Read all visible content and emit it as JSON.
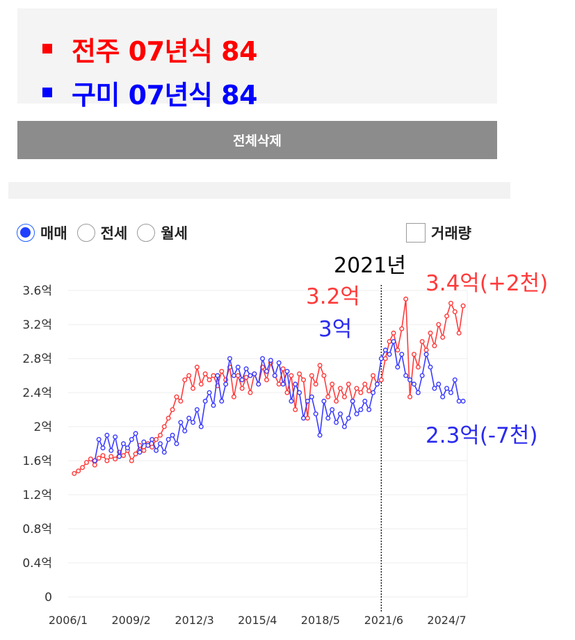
{
  "legend": {
    "items": [
      {
        "label": "전주 07년식 84",
        "color": "#ff0000"
      },
      {
        "label": "구미 07년식 84",
        "color": "#0000ff"
      }
    ]
  },
  "delete_button": {
    "label": "전체삭제"
  },
  "chart_type_options": [
    {
      "label": "매매",
      "selected": true
    },
    {
      "label": "전세",
      "selected": false
    },
    {
      "label": "월세",
      "selected": false
    }
  ],
  "volume_checkbox": {
    "label": "거래량",
    "checked": false
  },
  "chart_data": {
    "type": "line",
    "xlabel": "",
    "ylabel": "",
    "xlim": [
      2006.0,
      2025.5
    ],
    "ylim": [
      0,
      3.6
    ],
    "x_ticks": [
      {
        "value": 2006.0,
        "label": "2006/1"
      },
      {
        "value": 2009.08,
        "label": "2009/2"
      },
      {
        "value": 2012.17,
        "label": "2012/3"
      },
      {
        "value": 2015.25,
        "label": "2015/4"
      },
      {
        "value": 2018.33,
        "label": "2018/5"
      },
      {
        "value": 2021.42,
        "label": "2021/6"
      },
      {
        "value": 2024.5,
        "label": "2024/7"
      }
    ],
    "y_ticks": [
      {
        "value": 0,
        "label": "0"
      },
      {
        "value": 0.4,
        "label": "0.4억"
      },
      {
        "value": 0.8,
        "label": "0.8억"
      },
      {
        "value": 1.2,
        "label": "1.2억"
      },
      {
        "value": 1.6,
        "label": "1.6억"
      },
      {
        "value": 2.0,
        "label": "2억"
      },
      {
        "value": 2.4,
        "label": "2.4억"
      },
      {
        "value": 2.8,
        "label": "2.8억"
      },
      {
        "value": 3.2,
        "label": "3.2억"
      },
      {
        "value": 3.6,
        "label": "3.6억"
      }
    ],
    "grid": "horizontal",
    "reference_line": {
      "x": 2021.3,
      "label": "2021년"
    },
    "series": [
      {
        "name": "전주 07년식 84",
        "color": "#ff3a3a",
        "points": [
          [
            2006.3,
            1.45
          ],
          [
            2006.5,
            1.48
          ],
          [
            2006.7,
            1.52
          ],
          [
            2006.9,
            1.58
          ],
          [
            2007.1,
            1.62
          ],
          [
            2007.3,
            1.55
          ],
          [
            2007.5,
            1.63
          ],
          [
            2007.7,
            1.66
          ],
          [
            2007.9,
            1.6
          ],
          [
            2008.1,
            1.65
          ],
          [
            2008.3,
            1.62
          ],
          [
            2008.5,
            1.7
          ],
          [
            2008.7,
            1.66
          ],
          [
            2008.9,
            1.72
          ],
          [
            2009.1,
            1.6
          ],
          [
            2009.3,
            1.68
          ],
          [
            2009.5,
            1.78
          ],
          [
            2009.7,
            1.72
          ],
          [
            2009.9,
            1.8
          ],
          [
            2010.1,
            1.76
          ],
          [
            2010.3,
            1.85
          ],
          [
            2010.5,
            1.9
          ],
          [
            2010.7,
            2.0
          ],
          [
            2010.9,
            2.1
          ],
          [
            2011.1,
            2.2
          ],
          [
            2011.3,
            2.35
          ],
          [
            2011.5,
            2.3
          ],
          [
            2011.7,
            2.55
          ],
          [
            2011.9,
            2.6
          ],
          [
            2012.1,
            2.45
          ],
          [
            2012.3,
            2.7
          ],
          [
            2012.5,
            2.5
          ],
          [
            2012.7,
            2.62
          ],
          [
            2012.9,
            2.55
          ],
          [
            2013.1,
            2.6
          ],
          [
            2013.3,
            2.48
          ],
          [
            2013.5,
            2.65
          ],
          [
            2013.7,
            2.55
          ],
          [
            2013.9,
            2.7
          ],
          [
            2014.1,
            2.35
          ],
          [
            2014.3,
            2.6
          ],
          [
            2014.5,
            2.45
          ],
          [
            2014.7,
            2.58
          ],
          [
            2014.9,
            2.4
          ],
          [
            2015.1,
            2.62
          ],
          [
            2015.3,
            2.5
          ],
          [
            2015.5,
            2.7
          ],
          [
            2015.7,
            2.55
          ],
          [
            2015.9,
            2.75
          ],
          [
            2016.1,
            2.6
          ],
          [
            2016.3,
            2.5
          ],
          [
            2016.5,
            2.68
          ],
          [
            2016.7,
            2.4
          ],
          [
            2016.9,
            2.6
          ],
          [
            2017.1,
            2.2
          ],
          [
            2017.3,
            2.62
          ],
          [
            2017.5,
            2.55
          ],
          [
            2017.7,
            2.1
          ],
          [
            2017.9,
            2.6
          ],
          [
            2018.1,
            2.5
          ],
          [
            2018.3,
            2.72
          ],
          [
            2018.5,
            2.6
          ],
          [
            2018.7,
            2.35
          ],
          [
            2018.9,
            2.5
          ],
          [
            2019.1,
            2.3
          ],
          [
            2019.3,
            2.45
          ],
          [
            2019.5,
            2.35
          ],
          [
            2019.7,
            2.5
          ],
          [
            2019.9,
            2.3
          ],
          [
            2020.1,
            2.45
          ],
          [
            2020.3,
            2.4
          ],
          [
            2020.5,
            2.5
          ],
          [
            2020.7,
            2.42
          ],
          [
            2020.9,
            2.6
          ],
          [
            2021.1,
            2.5
          ],
          [
            2021.3,
            2.55
          ],
          [
            2021.5,
            2.8
          ],
          [
            2021.7,
            3.0
          ],
          [
            2021.9,
            3.1
          ],
          [
            2022.1,
            2.9
          ],
          [
            2022.3,
            3.15
          ],
          [
            2022.5,
            3.5
          ],
          [
            2022.7,
            2.35
          ],
          [
            2022.9,
            2.85
          ],
          [
            2023.1,
            2.7
          ],
          [
            2023.3,
            3.0
          ],
          [
            2023.5,
            2.9
          ],
          [
            2023.7,
            3.1
          ],
          [
            2023.9,
            2.95
          ],
          [
            2024.1,
            3.2
          ],
          [
            2024.3,
            3.05
          ],
          [
            2024.5,
            3.3
          ],
          [
            2024.7,
            3.45
          ],
          [
            2024.9,
            3.35
          ],
          [
            2025.1,
            3.1
          ],
          [
            2025.3,
            3.42
          ]
        ]
      },
      {
        "name": "구미 07년식 84",
        "color": "#3a3aff",
        "points": [
          [
            2007.3,
            1.6
          ],
          [
            2007.5,
            1.85
          ],
          [
            2007.7,
            1.75
          ],
          [
            2007.9,
            1.9
          ],
          [
            2008.1,
            1.72
          ],
          [
            2008.3,
            1.88
          ],
          [
            2008.5,
            1.65
          ],
          [
            2008.7,
            1.8
          ],
          [
            2008.9,
            1.75
          ],
          [
            2009.1,
            1.85
          ],
          [
            2009.3,
            1.92
          ],
          [
            2009.5,
            1.7
          ],
          [
            2009.7,
            1.82
          ],
          [
            2009.9,
            1.78
          ],
          [
            2010.1,
            1.85
          ],
          [
            2010.3,
            1.72
          ],
          [
            2010.5,
            1.8
          ],
          [
            2010.7,
            1.7
          ],
          [
            2010.9,
            1.85
          ],
          [
            2011.1,
            1.9
          ],
          [
            2011.3,
            1.8
          ],
          [
            2011.5,
            2.05
          ],
          [
            2011.7,
            1.95
          ],
          [
            2011.9,
            2.1
          ],
          [
            2012.1,
            2.05
          ],
          [
            2012.3,
            2.2
          ],
          [
            2012.5,
            2.0
          ],
          [
            2012.7,
            2.3
          ],
          [
            2012.9,
            2.4
          ],
          [
            2013.1,
            2.25
          ],
          [
            2013.3,
            2.6
          ],
          [
            2013.5,
            2.3
          ],
          [
            2013.7,
            2.5
          ],
          [
            2013.9,
            2.8
          ],
          [
            2014.1,
            2.6
          ],
          [
            2014.3,
            2.7
          ],
          [
            2014.5,
            2.55
          ],
          [
            2014.7,
            2.68
          ],
          [
            2014.9,
            2.6
          ],
          [
            2015.1,
            2.62
          ],
          [
            2015.3,
            2.5
          ],
          [
            2015.5,
            2.8
          ],
          [
            2015.7,
            2.65
          ],
          [
            2015.9,
            2.78
          ],
          [
            2016.1,
            2.6
          ],
          [
            2016.3,
            2.75
          ],
          [
            2016.5,
            2.5
          ],
          [
            2016.7,
            2.65
          ],
          [
            2016.9,
            2.3
          ],
          [
            2017.1,
            2.5
          ],
          [
            2017.3,
            2.4
          ],
          [
            2017.5,
            2.1
          ],
          [
            2017.7,
            2.3
          ],
          [
            2017.9,
            2.35
          ],
          [
            2018.1,
            2.15
          ],
          [
            2018.3,
            1.9
          ],
          [
            2018.5,
            2.3
          ],
          [
            2018.7,
            2.1
          ],
          [
            2018.9,
            2.2
          ],
          [
            2019.1,
            2.05
          ],
          [
            2019.3,
            2.15
          ],
          [
            2019.5,
            2.0
          ],
          [
            2019.7,
            2.1
          ],
          [
            2019.9,
            2.3
          ],
          [
            2020.1,
            2.15
          ],
          [
            2020.3,
            2.2
          ],
          [
            2020.5,
            2.3
          ],
          [
            2020.7,
            2.2
          ],
          [
            2020.9,
            2.4
          ],
          [
            2021.1,
            2.5
          ],
          [
            2021.3,
            2.8
          ],
          [
            2021.5,
            2.9
          ],
          [
            2021.7,
            2.85
          ],
          [
            2021.9,
            3.0
          ],
          [
            2022.1,
            2.7
          ],
          [
            2022.3,
            2.85
          ],
          [
            2022.5,
            2.6
          ],
          [
            2022.7,
            2.55
          ],
          [
            2022.9,
            2.5
          ],
          [
            2023.1,
            2.4
          ],
          [
            2023.3,
            2.6
          ],
          [
            2023.5,
            2.85
          ],
          [
            2023.7,
            2.7
          ],
          [
            2023.9,
            2.45
          ],
          [
            2024.1,
            2.5
          ],
          [
            2024.3,
            2.35
          ],
          [
            2024.5,
            2.45
          ],
          [
            2024.7,
            2.4
          ],
          [
            2024.9,
            2.55
          ],
          [
            2025.1,
            2.3
          ],
          [
            2025.3,
            2.3
          ]
        ]
      }
    ],
    "annotations": [
      {
        "text": "3.2억",
        "color": "#ff3a3a",
        "anchor": "left of reference line, upper"
      },
      {
        "text": "3억",
        "color": "#2a2aee",
        "anchor": "left of reference line, lower"
      },
      {
        "text": "3.4억(+2천)",
        "color": "#ff3a3a",
        "anchor": "right end, top"
      },
      {
        "text": "2.3억(-7천)",
        "color": "#2a2aee",
        "anchor": "right end, below"
      }
    ]
  }
}
